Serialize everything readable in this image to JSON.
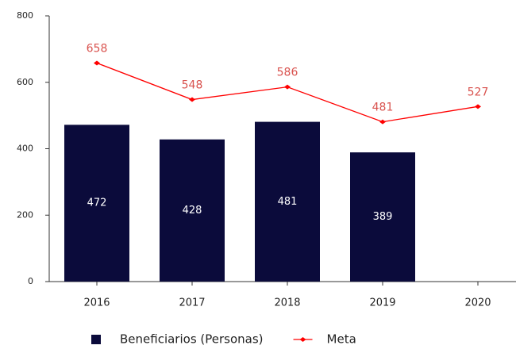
{
  "chart_data": {
    "type": "bar",
    "categories": [
      "2016",
      "2017",
      "2018",
      "2019",
      "2020"
    ],
    "series": [
      {
        "name": "Beneficiarios (Personas)",
        "type": "bar",
        "color": "#0b0b3b",
        "values": [
          472,
          428,
          481,
          389,
          null
        ]
      },
      {
        "name": "Meta",
        "type": "line",
        "color": "#ff0000",
        "values": [
          658,
          548,
          586,
          481,
          527
        ]
      }
    ],
    "ylim": [
      0,
      800
    ],
    "yticks": [
      0,
      200,
      400,
      600,
      800
    ]
  }
}
